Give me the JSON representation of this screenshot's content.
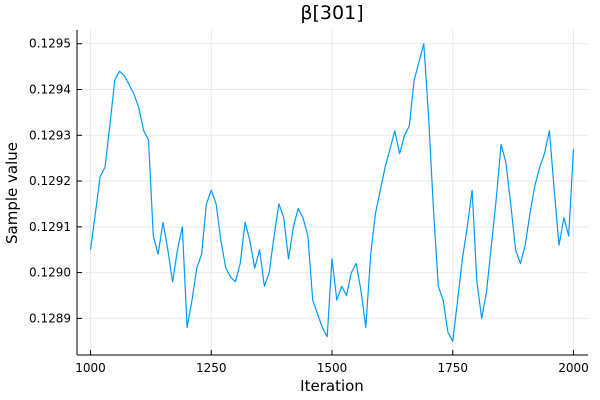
{
  "chart_data": {
    "type": "line",
    "title": "β[301]",
    "xlabel": "Iteration",
    "ylabel": "Sample value",
    "xlim": [
      972,
      2030
    ],
    "ylim": [
      0.12882,
      0.12953
    ],
    "xticks": [
      1000,
      1250,
      1500,
      1750,
      2000
    ],
    "xtick_labels": [
      "1000",
      "1250",
      "1500",
      "1750",
      "2000"
    ],
    "yticks": [
      0.1289,
      0.129,
      0.1291,
      0.1292,
      0.1293,
      0.1294,
      0.1295
    ],
    "ytick_labels": [
      "0.1289",
      "0.1290",
      "0.1291",
      "0.1292",
      "0.1293",
      "0.1294",
      "0.1295"
    ],
    "grid": true,
    "legend": "none",
    "series": [
      {
        "color": "#009AFA",
        "x": [
          1000,
          1010,
          1020,
          1030,
          1040,
          1050,
          1060,
          1070,
          1080,
          1090,
          1100,
          1110,
          1120,
          1130,
          1140,
          1150,
          1160,
          1170,
          1180,
          1190,
          1200,
          1210,
          1220,
          1230,
          1240,
          1250,
          1260,
          1270,
          1280,
          1290,
          1300,
          1310,
          1320,
          1330,
          1340,
          1350,
          1360,
          1370,
          1380,
          1390,
          1400,
          1410,
          1420,
          1430,
          1440,
          1450,
          1460,
          1470,
          1480,
          1490,
          1500,
          1510,
          1520,
          1530,
          1540,
          1550,
          1560,
          1570,
          1580,
          1590,
          1600,
          1610,
          1620,
          1630,
          1640,
          1650,
          1660,
          1670,
          1680,
          1690,
          1700,
          1710,
          1720,
          1730,
          1740,
          1750,
          1760,
          1770,
          1780,
          1790,
          1800,
          1810,
          1820,
          1830,
          1840,
          1850,
          1860,
          1870,
          1880,
          1890,
          1900,
          1910,
          1920,
          1930,
          1940,
          1950,
          1960,
          1970,
          1980,
          1990,
          2000
        ],
        "y": [
          0.12905,
          0.12913,
          0.12921,
          0.12923,
          0.12932,
          0.12942,
          0.12944,
          0.12943,
          0.12941,
          0.12939,
          0.12936,
          0.12931,
          0.12929,
          0.12908,
          0.12904,
          0.12911,
          0.12905,
          0.12898,
          0.12905,
          0.1291,
          0.12888,
          0.12894,
          0.12901,
          0.12904,
          0.12915,
          0.12918,
          0.12915,
          0.12907,
          0.12901,
          0.12899,
          0.12898,
          0.12902,
          0.12911,
          0.12907,
          0.12901,
          0.12905,
          0.12897,
          0.129,
          0.12908,
          0.12915,
          0.12912,
          0.12903,
          0.1291,
          0.12914,
          0.12912,
          0.12908,
          0.12894,
          0.12891,
          0.12888,
          0.12886,
          0.12903,
          0.12894,
          0.12897,
          0.12895,
          0.129,
          0.12902,
          0.12896,
          0.12888,
          0.12904,
          0.12913,
          0.12918,
          0.12923,
          0.12927,
          0.12931,
          0.12926,
          0.1293,
          0.12932,
          0.12942,
          0.12946,
          0.1295,
          0.12934,
          0.12914,
          0.12897,
          0.12894,
          0.12887,
          0.12885,
          0.12894,
          0.12903,
          0.1291,
          0.12918,
          0.12898,
          0.1289,
          0.12896,
          0.12906,
          0.12916,
          0.12928,
          0.12924,
          0.12915,
          0.12905,
          0.12902,
          0.12906,
          0.12913,
          0.12919,
          0.12923,
          0.12926,
          0.12931,
          0.12918,
          0.12906,
          0.12912,
          0.12908,
          0.12927
        ]
      }
    ]
  }
}
